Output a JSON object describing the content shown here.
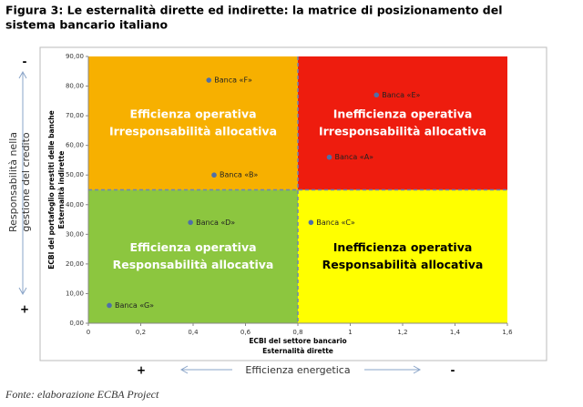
{
  "chart_data": {
    "type": "scatter",
    "title": [
      "Figura 3: Le esternalità dirette ed indirette: la matrice di posizionamento del",
      "sistema bancario italiano"
    ],
    "xlabel": [
      "ECBI del settore bancario",
      "Esternalità dirette"
    ],
    "ylabel": [
      "ECBI del portafoglio prestiti delle banche",
      "Esternalità indirette"
    ],
    "xlim": [
      0,
      1.6
    ],
    "ylim": [
      0,
      90
    ],
    "xticks": [
      {
        "value": 0,
        "label": "0"
      },
      {
        "value": 0.2,
        "label": "0,2"
      },
      {
        "value": 0.4,
        "label": "0,4"
      },
      {
        "value": 0.6,
        "label": "0,6"
      },
      {
        "value": 0.8,
        "label": "0,8"
      },
      {
        "value": 1,
        "label": "1"
      },
      {
        "value": 1.2,
        "label": "1,2"
      },
      {
        "value": 1.4,
        "label": "1,4"
      },
      {
        "value": 1.6,
        "label": "1,6"
      }
    ],
    "yticks": [
      {
        "value": 0,
        "label": "0,00"
      },
      {
        "value": 10,
        "label": "10,00"
      },
      {
        "value": 20,
        "label": "20,00"
      },
      {
        "value": 30,
        "label": "30,00"
      },
      {
        "value": 40,
        "label": "40,00"
      },
      {
        "value": 50,
        "label": "50,00"
      },
      {
        "value": 60,
        "label": "60,00"
      },
      {
        "value": 70,
        "label": "70,00"
      },
      {
        "value": 80,
        "label": "80,00"
      },
      {
        "value": 90,
        "label": "90,00"
      }
    ],
    "dividers": {
      "x": 0.8,
      "y": 45
    },
    "quadrants": [
      {
        "position": "top-left",
        "color": "#f7b000",
        "text_color": "#ffffff",
        "lines": [
          "Efficienza operativa",
          "Irresponsabilità allocativa"
        ]
      },
      {
        "position": "top-right",
        "color": "#ee1c0e",
        "text_color": "#ffffff",
        "lines": [
          "Inefficienza operativa",
          "Irresponsabilità allocativa"
        ]
      },
      {
        "position": "bottom-left",
        "color": "#8cc63f",
        "text_color": "#ffffff",
        "lines": [
          "Efficienza operativa",
          "Responsabilità allocativa"
        ]
      },
      {
        "position": "bottom-right",
        "color": "#ffff00",
        "text_color": "#000000",
        "lines": [
          "Inefficienza operativa",
          "Responsabilità allocativa"
        ]
      }
    ],
    "point_color": "#4f6fa8",
    "points": [
      {
        "label": "Banca «F»",
        "x": 0.46,
        "y": 82
      },
      {
        "label": "Banca «E»",
        "x": 1.1,
        "y": 77
      },
      {
        "label": "Banca «A»",
        "x": 0.92,
        "y": 56
      },
      {
        "label": "Banca «B»",
        "x": 0.48,
        "y": 50
      },
      {
        "label": "Banca «D»",
        "x": 0.39,
        "y": 34
      },
      {
        "label": "Banca «C»",
        "x": 0.85,
        "y": 34
      },
      {
        "label": "Banca «G»",
        "x": 0.08,
        "y": 6
      }
    ],
    "left_axis": {
      "top": "-",
      "bottom": "+",
      "lines": [
        "Responsabilità nella",
        "gestione del credito"
      ]
    },
    "bottom_axis": {
      "left": "+",
      "right": "-",
      "label": "Efficienza energetica"
    },
    "source": "Fonte: elaborazione ECBA Project"
  }
}
